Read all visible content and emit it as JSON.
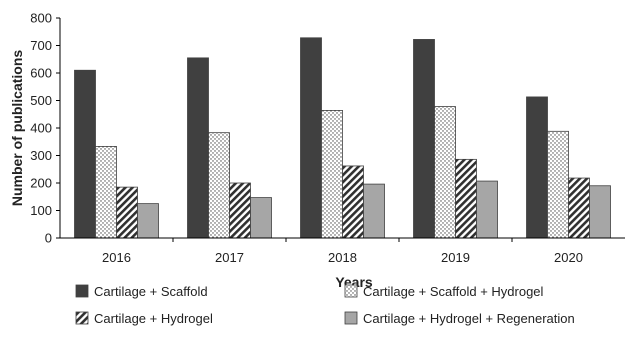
{
  "chart_data": {
    "type": "bar",
    "categories": [
      "2016",
      "2017",
      "2018",
      "2019",
      "2020"
    ],
    "series": [
      {
        "name": "Cartilage + Scaffold",
        "values": [
          610,
          655,
          728,
          722,
          513
        ],
        "pattern": "solid",
        "color": "#404040"
      },
      {
        "name": "Cartilage + Scaffold + Hydrogel",
        "values": [
          333,
          383,
          464,
          478,
          388
        ],
        "pattern": "dots",
        "color": "#ffffff"
      },
      {
        "name": "Cartilage +  Hydrogel",
        "values": [
          185,
          200,
          262,
          286,
          218
        ],
        "pattern": "hatch",
        "color": "#ffffff"
      },
      {
        "name": "Cartilage + Hydrogel + Regeneration",
        "values": [
          125,
          147,
          196,
          207,
          190
        ],
        "pattern": "solid",
        "color": "#a6a6a6"
      }
    ],
    "xlabel": "Years",
    "ylabel": "Number of publications",
    "ylim": [
      0,
      800
    ],
    "yticks": [
      0,
      100,
      200,
      300,
      400,
      500,
      600,
      700,
      800
    ],
    "grid": false,
    "legend_position": "bottom"
  }
}
